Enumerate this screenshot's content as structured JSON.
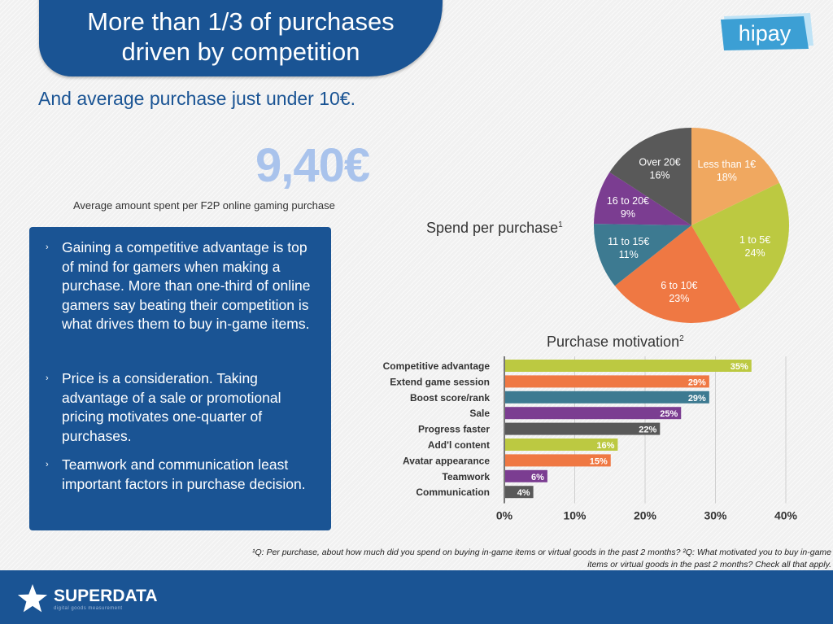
{
  "title": {
    "line1": "More than 1/3 of purchases",
    "line2": "driven by competition"
  },
  "logo": {
    "text": "hipay"
  },
  "subtitle": "And average purchase just under 10€.",
  "highlight": {
    "value": "9,40€",
    "caption": "Average amount spent per F2P online gaming purchase"
  },
  "bullets": [
    "Gaining a competitive advantage is top of mind for gamers when making a purchase. More than one-third of online gamers say beating their competition is what drives them to buy in-game items.",
    "Price is a consideration. Taking advantage of a sale or promotional pricing motivates one-quarter of purchases.",
    "Teamwork and communication least important factors in purchase decision."
  ],
  "bullet_marker": "›",
  "pie_label": {
    "text": "Spend per purchase",
    "sup": "1"
  },
  "bar_title": {
    "text": "Purchase motivation",
    "sup": "2"
  },
  "chart_data": [
    {
      "type": "pie",
      "title": "Spend per purchase",
      "slices": [
        {
          "label": "Less than 1€",
          "value": 18,
          "value_label": "18%",
          "color": "#f0a860"
        },
        {
          "label": "1 to 5€",
          "value": 24,
          "value_label": "24%",
          "color": "#bcc941"
        },
        {
          "label": "6 to 10€",
          "value": 23,
          "value_label": "23%",
          "color": "#ef7843"
        },
        {
          "label": "11 to 15€",
          "value": 11,
          "value_label": "11%",
          "color": "#3d7a91"
        },
        {
          "label": "16 to 20€",
          "value": 9,
          "value_label": "9%",
          "color": "#7b3d91"
        },
        {
          "label": "Over 20€",
          "value": 16,
          "value_label": "16%",
          "color": "#595959"
        }
      ]
    },
    {
      "type": "bar",
      "orientation": "horizontal",
      "title": "Purchase motivation",
      "categories": [
        "Competitive advantage",
        "Extend game session",
        "Boost score/rank",
        "Sale",
        "Progress faster",
        "Add'l content",
        "Avatar appearance",
        "Teamwork",
        "Communication"
      ],
      "values": [
        35,
        29,
        29,
        25,
        22,
        16,
        15,
        6,
        4
      ],
      "value_labels": [
        "35%",
        "29%",
        "29%",
        "25%",
        "22%",
        "16%",
        "15%",
        "6%",
        "4%"
      ],
      "colors": [
        "#bcc941",
        "#ef7843",
        "#3d7a91",
        "#7b3d91",
        "#595959",
        "#bcc941",
        "#ef7843",
        "#7b3d91",
        "#595959"
      ],
      "xlim": [
        0,
        40
      ],
      "xticks": [
        "0%",
        "10%",
        "20%",
        "30%",
        "40%"
      ],
      "grid": true
    }
  ],
  "footnotes": {
    "line1": "¹Q: Per purchase, about how much did you spend on buying in-game items or virtual goods in the past 2 months? ²Q: What motivated you to buy in-game",
    "line2": "items or virtual goods in the past 2 months? Check all that apply."
  },
  "footer": {
    "brand": "SUPERDATA",
    "tagline": "digital goods measurement"
  },
  "colors": {
    "brand_blue": "#1a5494",
    "highlight": "#a9c3ec",
    "logo_blue": "#3c9fd4"
  }
}
